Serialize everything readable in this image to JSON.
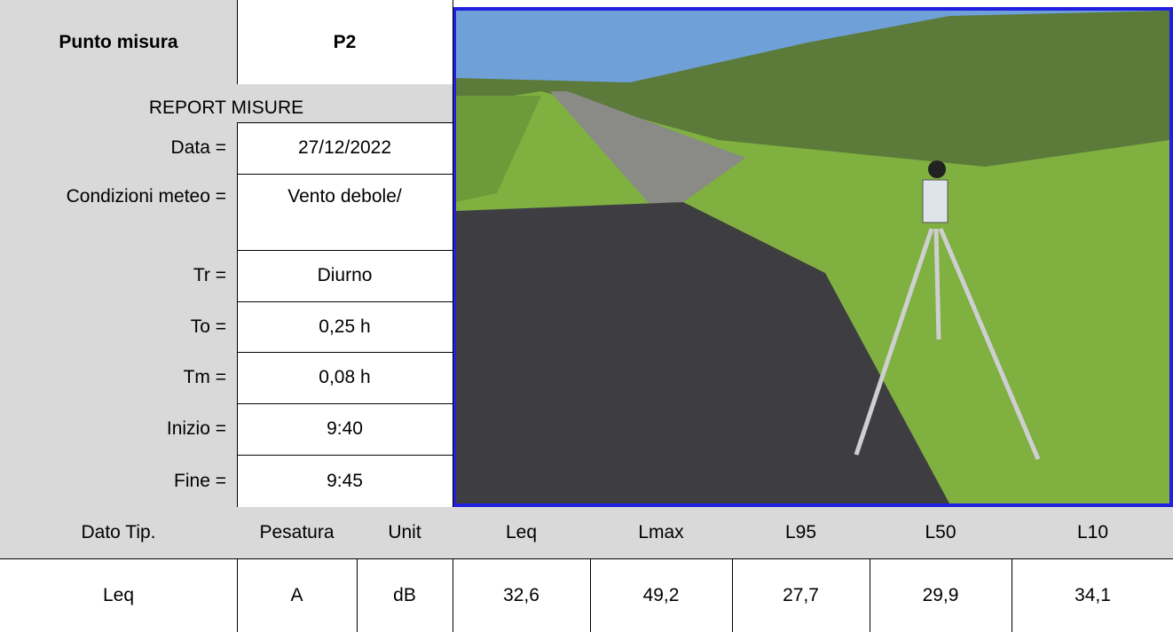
{
  "header": {
    "label": "Punto misura",
    "value": "P2"
  },
  "report_title": "REPORT MISURE",
  "fields": [
    {
      "label": "Data =",
      "value": "27/12/2022"
    },
    {
      "label": "Condizioni meteo =",
      "value": "Vento debole/"
    },
    {
      "label": "Tr =",
      "value": "Diurno"
    },
    {
      "label": "To =",
      "value": "0,25 h"
    },
    {
      "label": "Tm =",
      "value": "0,08 h"
    },
    {
      "label": "Inizio =",
      "value": "9:40"
    },
    {
      "label": "Fine =",
      "value": "9:45"
    }
  ],
  "table": {
    "columns": [
      "Dato Tip.",
      "Pesatura",
      "Unit",
      "Leq",
      "Lmax",
      "L95",
      "L50",
      "L10"
    ],
    "rows": [
      [
        "Leq",
        "A",
        "dB",
        "32,6",
        "49,2",
        "27,7",
        "29,9",
        "34,1"
      ]
    ]
  }
}
